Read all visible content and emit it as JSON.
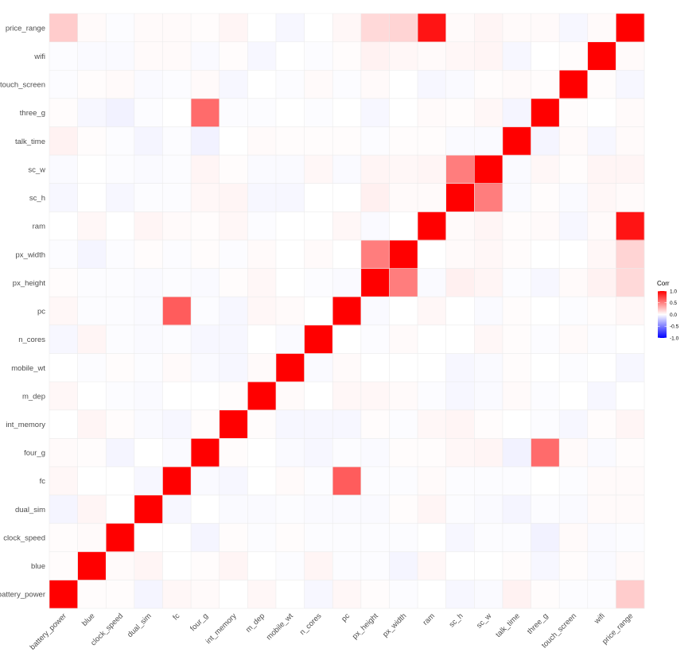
{
  "chart_data": {
    "type": "heatmap",
    "variables": [
      "battery_power",
      "blue",
      "clock_speed",
      "dual_sim",
      "fc",
      "four_g",
      "int_memory",
      "m_dep",
      "mobile_wt",
      "n_cores",
      "pc",
      "px_height",
      "px_width",
      "ram",
      "sc_h",
      "sc_w",
      "talk_time",
      "three_g",
      "touch_screen",
      "wifi",
      "price_range"
    ],
    "matrix": [
      [
        1.0,
        0.01,
        0.01,
        -0.04,
        0.03,
        0.02,
        -0.0,
        0.03,
        0.0,
        -0.03,
        0.03,
        0.01,
        -0.01,
        0.0,
        -0.03,
        -0.02,
        0.05,
        0.01,
        -0.01,
        -0.01,
        0.2
      ],
      [
        0.01,
        1.0,
        0.02,
        0.04,
        0.0,
        0.01,
        0.04,
        0.0,
        -0.01,
        0.04,
        -0.01,
        -0.01,
        -0.04,
        0.03,
        -0.0,
        0.0,
        0.01,
        -0.03,
        0.01,
        -0.02,
        0.02
      ],
      [
        0.01,
        0.02,
        1.0,
        -0.0,
        -0.0,
        -0.04,
        0.01,
        -0.01,
        0.01,
        -0.01,
        -0.01,
        -0.01,
        -0.01,
        0.0,
        -0.03,
        -0.01,
        -0.01,
        -0.05,
        0.02,
        -0.02,
        -0.01
      ],
      [
        -0.04,
        0.04,
        -0.0,
        1.0,
        -0.03,
        0.0,
        -0.02,
        -0.02,
        -0.01,
        -0.02,
        -0.02,
        -0.02,
        0.01,
        0.04,
        -0.01,
        -0.02,
        -0.04,
        -0.01,
        -0.02,
        0.02,
        0.02
      ],
      [
        0.03,
        0.0,
        -0.0,
        -0.03,
        1.0,
        -0.02,
        -0.03,
        -0.0,
        0.02,
        -0.01,
        0.64,
        -0.01,
        -0.01,
        0.02,
        -0.01,
        -0.01,
        -0.01,
        0.0,
        -0.01,
        0.02,
        0.02
      ],
      [
        0.02,
        0.01,
        -0.04,
        0.0,
        -0.02,
        1.0,
        0.01,
        -0.0,
        -0.02,
        -0.03,
        -0.01,
        -0.02,
        0.01,
        0.01,
        0.03,
        0.04,
        -0.05,
        0.58,
        0.02,
        -0.02,
        0.01
      ],
      [
        -0.0,
        0.04,
        0.01,
        -0.02,
        -0.03,
        0.01,
        1.0,
        0.01,
        -0.03,
        -0.03,
        -0.03,
        0.01,
        -0.01,
        0.03,
        0.04,
        0.01,
        -0.0,
        -0.01,
        -0.03,
        0.01,
        0.04
      ],
      [
        0.03,
        0.0,
        -0.01,
        -0.02,
        -0.0,
        -0.0,
        0.01,
        1.0,
        0.02,
        -0.0,
        0.03,
        0.03,
        0.02,
        -0.01,
        -0.03,
        -0.02,
        0.02,
        -0.01,
        -0.0,
        -0.03,
        0.0
      ],
      [
        0.0,
        -0.01,
        0.01,
        -0.01,
        0.02,
        -0.02,
        -0.03,
        0.02,
        1.0,
        -0.02,
        0.02,
        0.0,
        0.0,
        -0.0,
        -0.03,
        -0.02,
        0.01,
        0.0,
        -0.01,
        -0.0,
        -0.03
      ],
      [
        -0.03,
        0.04,
        -0.01,
        -0.02,
        -0.01,
        -0.03,
        -0.03,
        -0.0,
        -0.02,
        1.0,
        -0.0,
        -0.01,
        0.02,
        0.0,
        -0.0,
        0.03,
        0.01,
        -0.01,
        0.02,
        -0.01,
        0.0
      ],
      [
        0.03,
        -0.01,
        -0.01,
        -0.02,
        0.64,
        -0.01,
        -0.03,
        0.03,
        0.02,
        -0.0,
        1.0,
        -0.02,
        0.0,
        0.03,
        0.0,
        -0.02,
        0.01,
        -0.0,
        -0.01,
        0.01,
        0.03
      ],
      [
        0.01,
        -0.01,
        -0.01,
        -0.02,
        -0.01,
        -0.02,
        0.01,
        0.03,
        0.0,
        -0.01,
        -0.02,
        1.0,
        0.51,
        -0.02,
        0.06,
        0.04,
        -0.01,
        -0.03,
        0.02,
        0.05,
        0.15
      ],
      [
        -0.01,
        -0.04,
        -0.01,
        0.01,
        -0.01,
        0.01,
        -0.01,
        0.02,
        0.0,
        0.02,
        0.0,
        0.51,
        1.0,
        0.0,
        0.02,
        0.03,
        0.01,
        0.0,
        0.0,
        0.03,
        0.17
      ],
      [
        0.0,
        0.03,
        0.0,
        0.04,
        0.02,
        0.01,
        0.03,
        -0.01,
        -0.0,
        0.0,
        0.03,
        -0.02,
        0.0,
        1.0,
        0.02,
        0.04,
        0.01,
        0.02,
        -0.03,
        0.02,
        0.92
      ],
      [
        -0.03,
        -0.0,
        -0.03,
        -0.01,
        -0.01,
        0.03,
        0.04,
        -0.03,
        -0.03,
        -0.0,
        0.0,
        0.06,
        0.02,
        0.02,
        1.0,
        0.51,
        -0.02,
        0.01,
        -0.02,
        0.03,
        0.02
      ],
      [
        -0.02,
        0.0,
        -0.01,
        -0.02,
        -0.01,
        0.04,
        0.01,
        -0.02,
        -0.02,
        0.03,
        -0.02,
        0.04,
        0.03,
        0.04,
        0.51,
        1.0,
        -0.02,
        0.03,
        0.01,
        0.04,
        0.04
      ],
      [
        0.05,
        0.01,
        -0.01,
        -0.04,
        -0.01,
        -0.05,
        -0.0,
        0.02,
        0.01,
        0.01,
        0.01,
        -0.01,
        0.01,
        0.01,
        -0.02,
        -0.02,
        1.0,
        -0.04,
        0.02,
        -0.03,
        0.02
      ],
      [
        0.01,
        -0.03,
        -0.05,
        -0.01,
        0.0,
        0.58,
        -0.01,
        -0.01,
        0.0,
        -0.01,
        -0.0,
        -0.03,
        0.0,
        0.02,
        0.01,
        0.03,
        -0.04,
        1.0,
        0.01,
        0.0,
        0.02
      ],
      [
        -0.01,
        0.01,
        0.02,
        -0.02,
        -0.01,
        0.02,
        -0.03,
        -0.0,
        -0.01,
        0.02,
        -0.01,
        0.02,
        0.0,
        -0.03,
        -0.02,
        0.01,
        0.02,
        0.01,
        1.0,
        0.01,
        -0.03
      ],
      [
        -0.01,
        -0.02,
        -0.02,
        0.02,
        0.02,
        -0.02,
        0.01,
        -0.03,
        -0.0,
        -0.01,
        0.01,
        0.05,
        0.03,
        0.02,
        0.03,
        0.04,
        -0.03,
        0.0,
        0.01,
        1.0,
        0.02
      ],
      [
        0.2,
        0.02,
        -0.01,
        0.02,
        0.02,
        0.01,
        0.04,
        0.0,
        -0.03,
        0.0,
        0.03,
        0.15,
        0.17,
        0.92,
        0.02,
        0.04,
        0.02,
        0.02,
        -0.03,
        0.02,
        1.0
      ]
    ],
    "legend": {
      "title": "Corr",
      "ticks": [
        "1.0",
        "0.5",
        "0.0",
        "-0.5",
        "-1.0"
      ],
      "tick_values": [
        1.0,
        0.5,
        0.0,
        -0.5,
        -1.0
      ],
      "colors": {
        "low": "#0000ff",
        "mid": "#ffffff",
        "high": "#ff0000"
      },
      "placement": "right"
    },
    "range": [
      -1,
      1
    ],
    "grid": true
  }
}
